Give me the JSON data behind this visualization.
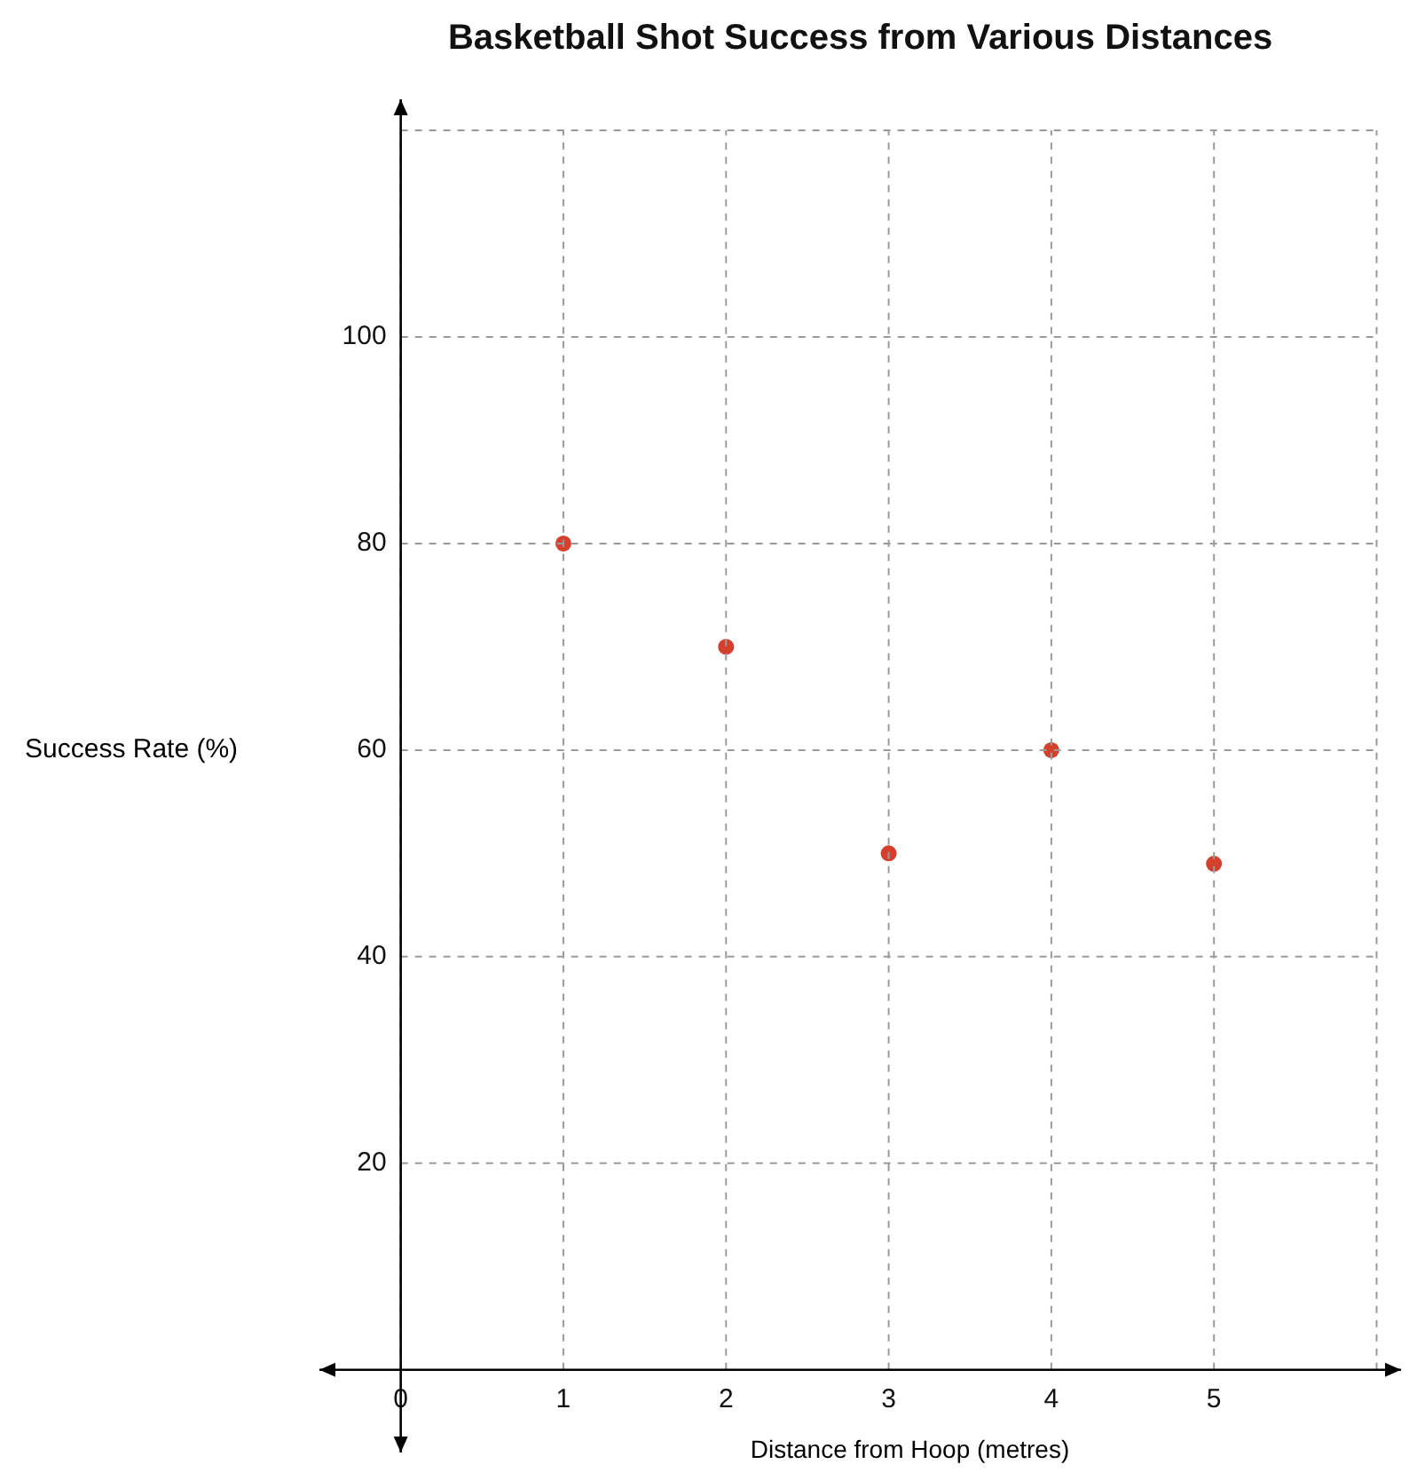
{
  "chart_data": {
    "type": "scatter",
    "title": "Basketball Shot Success from Various Distances",
    "xlabel": "Distance from Hoop (metres)",
    "ylabel": "Success Rate (%)",
    "x": [
      1,
      2,
      3,
      4,
      5
    ],
    "series": [
      {
        "color": "#d4402b",
        "values": [
          80,
          70,
          50,
          60,
          49
        ]
      }
    ],
    "xlim": [
      -0.5,
      6.15
    ],
    "ylim": [
      -8,
      123
    ],
    "xticks": [
      0,
      1,
      2,
      3,
      4,
      5,
      {
        "value": 6,
        "label": null
      }
    ],
    "yticks": [
      20,
      40,
      60,
      80,
      100,
      {
        "value": 120,
        "label": null
      }
    ],
    "grid": true,
    "marker": "circle",
    "legend": false
  }
}
